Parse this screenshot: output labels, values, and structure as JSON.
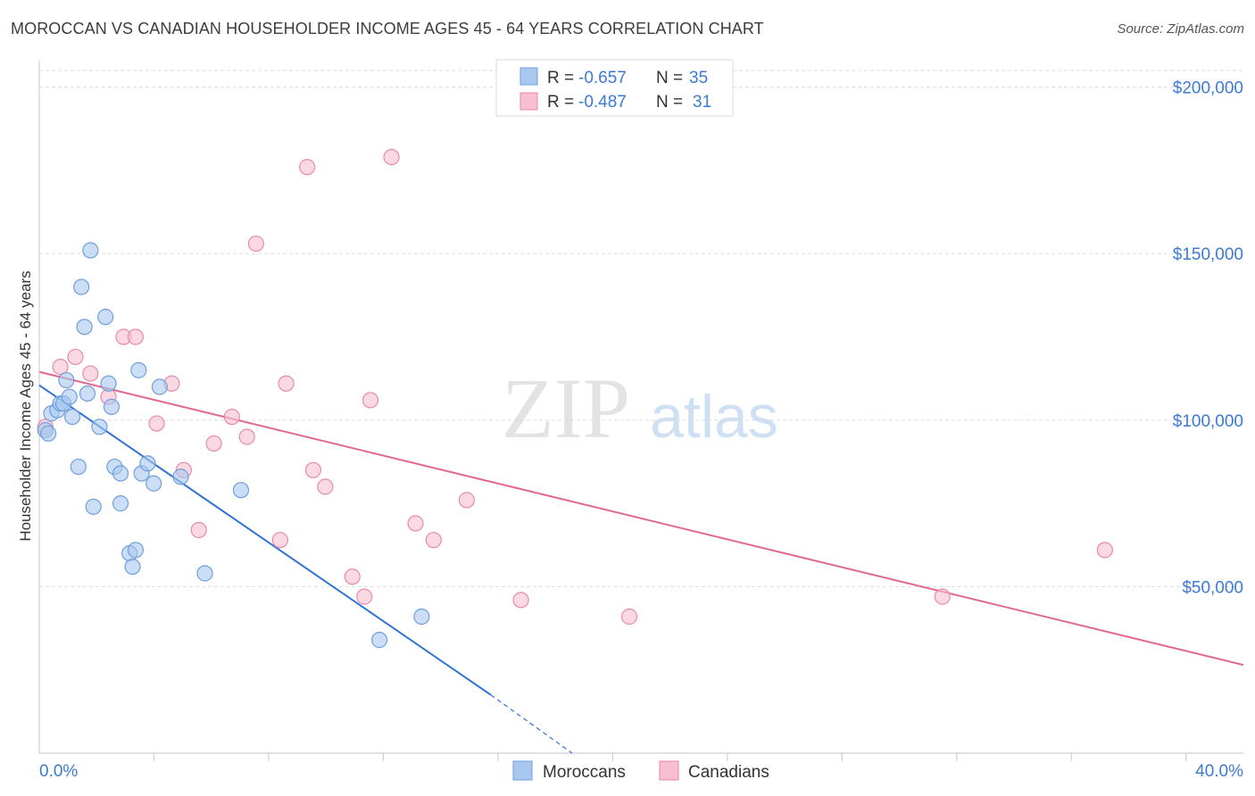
{
  "header": {
    "title": "MOROCCAN VS CANADIAN HOUSEHOLDER INCOME AGES 45 - 64 YEARS CORRELATION CHART",
    "source": "Source: ZipAtlas.com"
  },
  "watermark": {
    "zip": "ZIP",
    "atlas": "atlas"
  },
  "stats": [
    {
      "r_label": "R = ",
      "r_value": "-0.657",
      "n_label": "N = ",
      "n_value": "35"
    },
    {
      "r_label": "R = ",
      "r_value": "-0.487",
      "n_label": "N = ",
      "n_value": "31"
    }
  ],
  "legend": {
    "items": [
      "Moroccans",
      "Canadians"
    ]
  },
  "colors": {
    "moroccans_fill": "#a8c8f0",
    "moroccans_stroke": "#6f9fdc",
    "moroccans_line": "#2f72d6",
    "canadians_fill": "#f7bfd0",
    "canadians_stroke": "#e98aa9",
    "canadians_line": "#e06a93",
    "grid": "#dddddd",
    "axis_text": "#3d7ad6"
  },
  "chart_data": {
    "type": "scatter",
    "xlabel": "",
    "ylabel": "Householder Income Ages 45 - 64 years",
    "xlim": [
      0,
      40
    ],
    "ylim": [
      0,
      205000
    ],
    "x_tick_labels": [
      "0.0%",
      "40.0%"
    ],
    "y_ticks": [
      50000,
      100000,
      150000,
      200000
    ],
    "y_tick_labels": [
      "$50,000",
      "$100,000",
      "$150,000",
      "$200,000"
    ],
    "grid": true,
    "legend_position": "bottom-center",
    "series": [
      {
        "name": "Moroccans",
        "points": [
          [
            0.2,
            97000
          ],
          [
            0.3,
            96000
          ],
          [
            0.4,
            102000
          ],
          [
            0.6,
            103000
          ],
          [
            0.7,
            105000
          ],
          [
            0.8,
            105000
          ],
          [
            0.9,
            112000
          ],
          [
            1.0,
            107000
          ],
          [
            1.1,
            101000
          ],
          [
            1.3,
            86000
          ],
          [
            1.4,
            140000
          ],
          [
            1.5,
            128000
          ],
          [
            1.6,
            108000
          ],
          [
            1.7,
            151000
          ],
          [
            1.8,
            74000
          ],
          [
            2.0,
            98000
          ],
          [
            2.2,
            131000
          ],
          [
            2.3,
            111000
          ],
          [
            2.4,
            104000
          ],
          [
            2.5,
            86000
          ],
          [
            2.7,
            84000
          ],
          [
            2.7,
            75000
          ],
          [
            3.0,
            60000
          ],
          [
            3.1,
            56000
          ],
          [
            3.2,
            61000
          ],
          [
            3.3,
            115000
          ],
          [
            3.4,
            84000
          ],
          [
            3.6,
            87000
          ],
          [
            3.8,
            81000
          ],
          [
            4.0,
            110000
          ],
          [
            4.7,
            83000
          ],
          [
            5.5,
            54000
          ],
          [
            6.7,
            79000
          ],
          [
            11.3,
            34000
          ],
          [
            12.7,
            41000
          ]
        ]
      },
      {
        "name": "Canadians",
        "points": [
          [
            0.2,
            98000
          ],
          [
            0.7,
            116000
          ],
          [
            1.2,
            119000
          ],
          [
            1.7,
            114000
          ],
          [
            2.3,
            107000
          ],
          [
            2.8,
            125000
          ],
          [
            3.2,
            125000
          ],
          [
            3.9,
            99000
          ],
          [
            4.4,
            111000
          ],
          [
            4.8,
            85000
          ],
          [
            5.3,
            67000
          ],
          [
            5.8,
            93000
          ],
          [
            6.4,
            101000
          ],
          [
            6.9,
            95000
          ],
          [
            7.2,
            153000
          ],
          [
            8.0,
            64000
          ],
          [
            8.2,
            111000
          ],
          [
            8.9,
            176000
          ],
          [
            9.1,
            85000
          ],
          [
            9.5,
            80000
          ],
          [
            10.4,
            53000
          ],
          [
            10.8,
            47000
          ],
          [
            11.0,
            106000
          ],
          [
            11.7,
            179000
          ],
          [
            12.5,
            69000
          ],
          [
            13.1,
            64000
          ],
          [
            14.2,
            76000
          ],
          [
            16.0,
            46000
          ],
          [
            19.6,
            41000
          ],
          [
            30.0,
            47000
          ],
          [
            35.4,
            61000
          ]
        ]
      }
    ],
    "trendlines": [
      {
        "series": "Moroccans",
        "x1": 0,
        "y1": 110500,
        "x2": 15.0,
        "y2": 17500,
        "dashed_to_x": 17.7,
        "dashed_to_y": 0
      },
      {
        "series": "Canadians",
        "x1": 0,
        "y1": 114500,
        "x2": 40.0,
        "y2": 26500
      }
    ]
  }
}
